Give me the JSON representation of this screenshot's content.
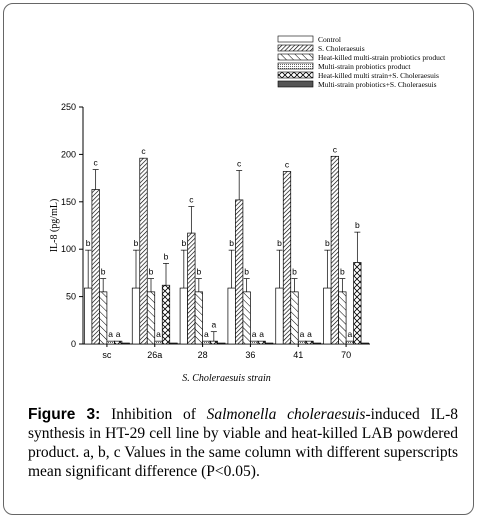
{
  "chart_data": {
    "type": "bar",
    "ylabel": "IL-8 (pg/mL)",
    "xlabel": "S. Choleraesuis strain",
    "ylim": [
      0,
      250
    ],
    "yticks": [
      0,
      50,
      100,
      150,
      200,
      250
    ],
    "categories": [
      "sc",
      "26a",
      "28",
      "36",
      "41",
      "70"
    ],
    "legend_position": "top-right",
    "series": [
      {
        "name": "Control",
        "pattern": "none",
        "values": [
          59,
          59,
          59,
          59,
          59,
          59
        ],
        "errors": [
          40,
          40,
          40,
          40,
          40,
          40
        ],
        "labels": [
          "b",
          "b",
          "b",
          "b",
          "b",
          "b"
        ]
      },
      {
        "name": "S. Choleraesuis",
        "pattern": "diag-right-dense",
        "values": [
          163,
          196,
          117,
          152,
          182,
          198
        ],
        "errors": [
          21,
          0,
          28,
          31,
          0,
          0
        ],
        "labels": [
          "c",
          "c",
          "c",
          "c",
          "c",
          "c"
        ]
      },
      {
        "name": "Heat-killed multi-strain probiotics product",
        "pattern": "diag-left",
        "values": [
          55,
          55,
          55,
          55,
          55,
          55
        ],
        "errors": [
          14,
          14,
          14,
          14,
          14,
          14
        ],
        "labels": [
          "b",
          "b",
          "b",
          "b",
          "b",
          "b"
        ]
      },
      {
        "name": "Multi-strain probiotics product",
        "pattern": "dots",
        "values": [
          3,
          3,
          3,
          3,
          3,
          3
        ],
        "errors": [
          0,
          0,
          0,
          0,
          0,
          0
        ],
        "labels": [
          "a",
          "a",
          "a",
          "a",
          "a",
          "a"
        ]
      },
      {
        "name": "Heat-killed multi strain+S. Choleraesuis",
        "pattern": "cross",
        "values": [
          3,
          62,
          3,
          3,
          3,
          86
        ],
        "errors": [
          0,
          23,
          10,
          0,
          0,
          32
        ],
        "labels": [
          "a",
          "b",
          "a",
          "a",
          "a",
          "b"
        ]
      },
      {
        "name": "Multi-strain probiotics+S. Choleraesuis",
        "pattern": "solid",
        "values": [
          1,
          1,
          1,
          1,
          1,
          1
        ],
        "errors": [
          0,
          0,
          0,
          0,
          0,
          0
        ],
        "labels": [
          "",
          "",
          "",
          "",
          "",
          ""
        ]
      }
    ]
  },
  "caption": {
    "figure_label": "Figure 3:",
    "text_part1": "Inhibition of",
    "organism": "Salmonella choleraesuis",
    "text_part2": "-induced IL-8 synthesis in HT-29 cell line by viable and heat-killed LAB powdered product. a, b, c Values in the same column with different superscripts mean significant difference (P<0.05)."
  }
}
